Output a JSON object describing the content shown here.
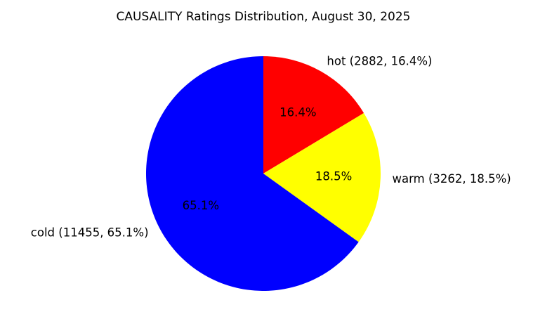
{
  "chart_data": {
    "type": "pie",
    "title": "CAUSALITY Ratings Distribution, August 30, 2025",
    "slices": [
      {
        "category": "hot",
        "value": 2882,
        "percent": 16.4,
        "label": "hot (2882, 16.4%)",
        "pct_text": "16.4%",
        "color": "#ff0000"
      },
      {
        "category": "warm",
        "value": 3262,
        "percent": 18.5,
        "label": "warm (3262, 18.5%)",
        "pct_text": "18.5%",
        "color": "#ffff00"
      },
      {
        "category": "cold",
        "value": 11455,
        "percent": 65.1,
        "label": "cold (11455, 65.1%)",
        "pct_text": "65.1%",
        "color": "#0000ff"
      }
    ],
    "start_angle": "top",
    "direction": "clockwise"
  }
}
